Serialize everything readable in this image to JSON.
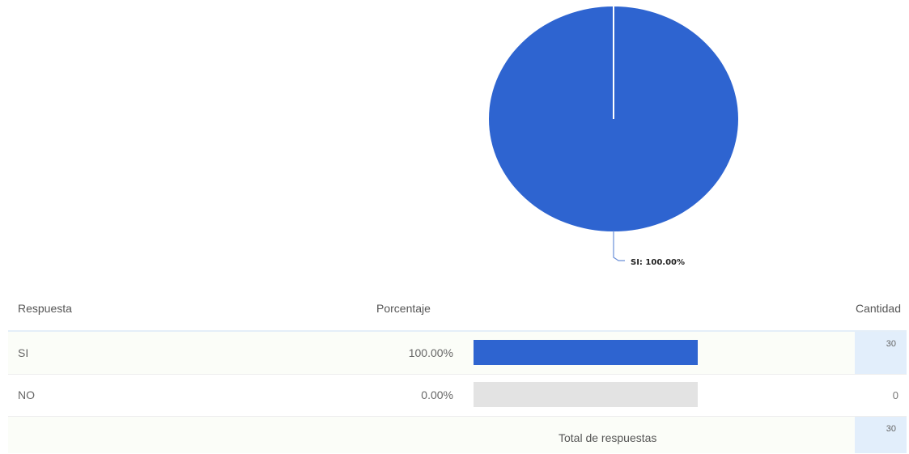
{
  "chart_data": {
    "type": "pie",
    "title": "",
    "slices": [
      {
        "label": "SI",
        "value": 100.0
      },
      {
        "label": "NO",
        "value": 0.0
      }
    ],
    "slice_labels": [
      "SI: 100.00%"
    ],
    "colors": {
      "SI": "#2e64d0",
      "NO": "#e3e3e3"
    }
  },
  "table": {
    "headers": {
      "answer": "Respuesta",
      "percent": "Porcentaje",
      "count": "Cantidad"
    },
    "rows": [
      {
        "answer": "SI",
        "percent": "100.00%",
        "fraction": 1.0,
        "count": "30",
        "color": "#2e64d0"
      },
      {
        "answer": "NO",
        "percent": "0.00%",
        "fraction": 0.0,
        "count": "0",
        "color": "#e3e3e3"
      }
    ],
    "total_label": "Total de respuestas",
    "total_count": "30"
  }
}
